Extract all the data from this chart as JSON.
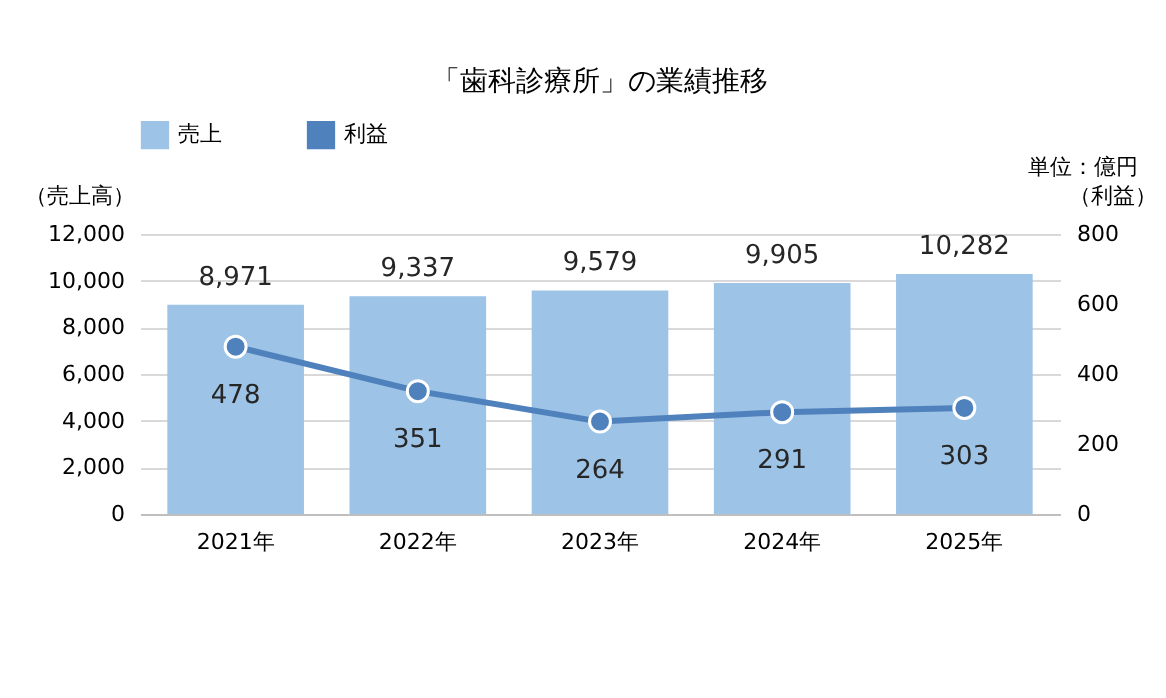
{
  "chart_data": {
    "type": "bar",
    "title": "「歯科診療所」の業績推移",
    "categories": [
      "2021年",
      "2022年",
      "2023年",
      "2024年",
      "2025年"
    ],
    "series": [
      {
        "name": "売上",
        "color": "#9dc3e6",
        "values": [
          8971,
          9337,
          9579,
          9905,
          10282
        ],
        "value_labels": [
          "8,971",
          "9,337",
          "9,579",
          "9,905",
          "10,282"
        ]
      },
      {
        "name": "利益",
        "type": "line",
        "axis": "y2",
        "color": "#4f81bd",
        "values": [
          478,
          351,
          264,
          291,
          303
        ],
        "value_labels": [
          "478",
          "351",
          "264",
          "291",
          "303"
        ]
      }
    ],
    "ylabel": "（売上高）",
    "y2label": "（利益）",
    "ylim": [
      0,
      12000
    ],
    "yticks": [
      0,
      {
        "value": 2000,
        "label": "2,000"
      },
      {
        "value": 4000,
        "label": "4,000"
      },
      {
        "value": 6000,
        "label": "6,000"
      },
      {
        "value": 8000,
        "label": "8,000"
      },
      {
        "value": 10000,
        "label": "10,000"
      },
      {
        "value": 12000,
        "label": "12,000"
      }
    ],
    "y2lim": [
      0,
      800
    ],
    "y2ticks": [
      0,
      200,
      400,
      600,
      800
    ],
    "grid": "y",
    "legend": "top",
    "marker": "circle",
    "annotations": [
      "単位：億円"
    ]
  }
}
